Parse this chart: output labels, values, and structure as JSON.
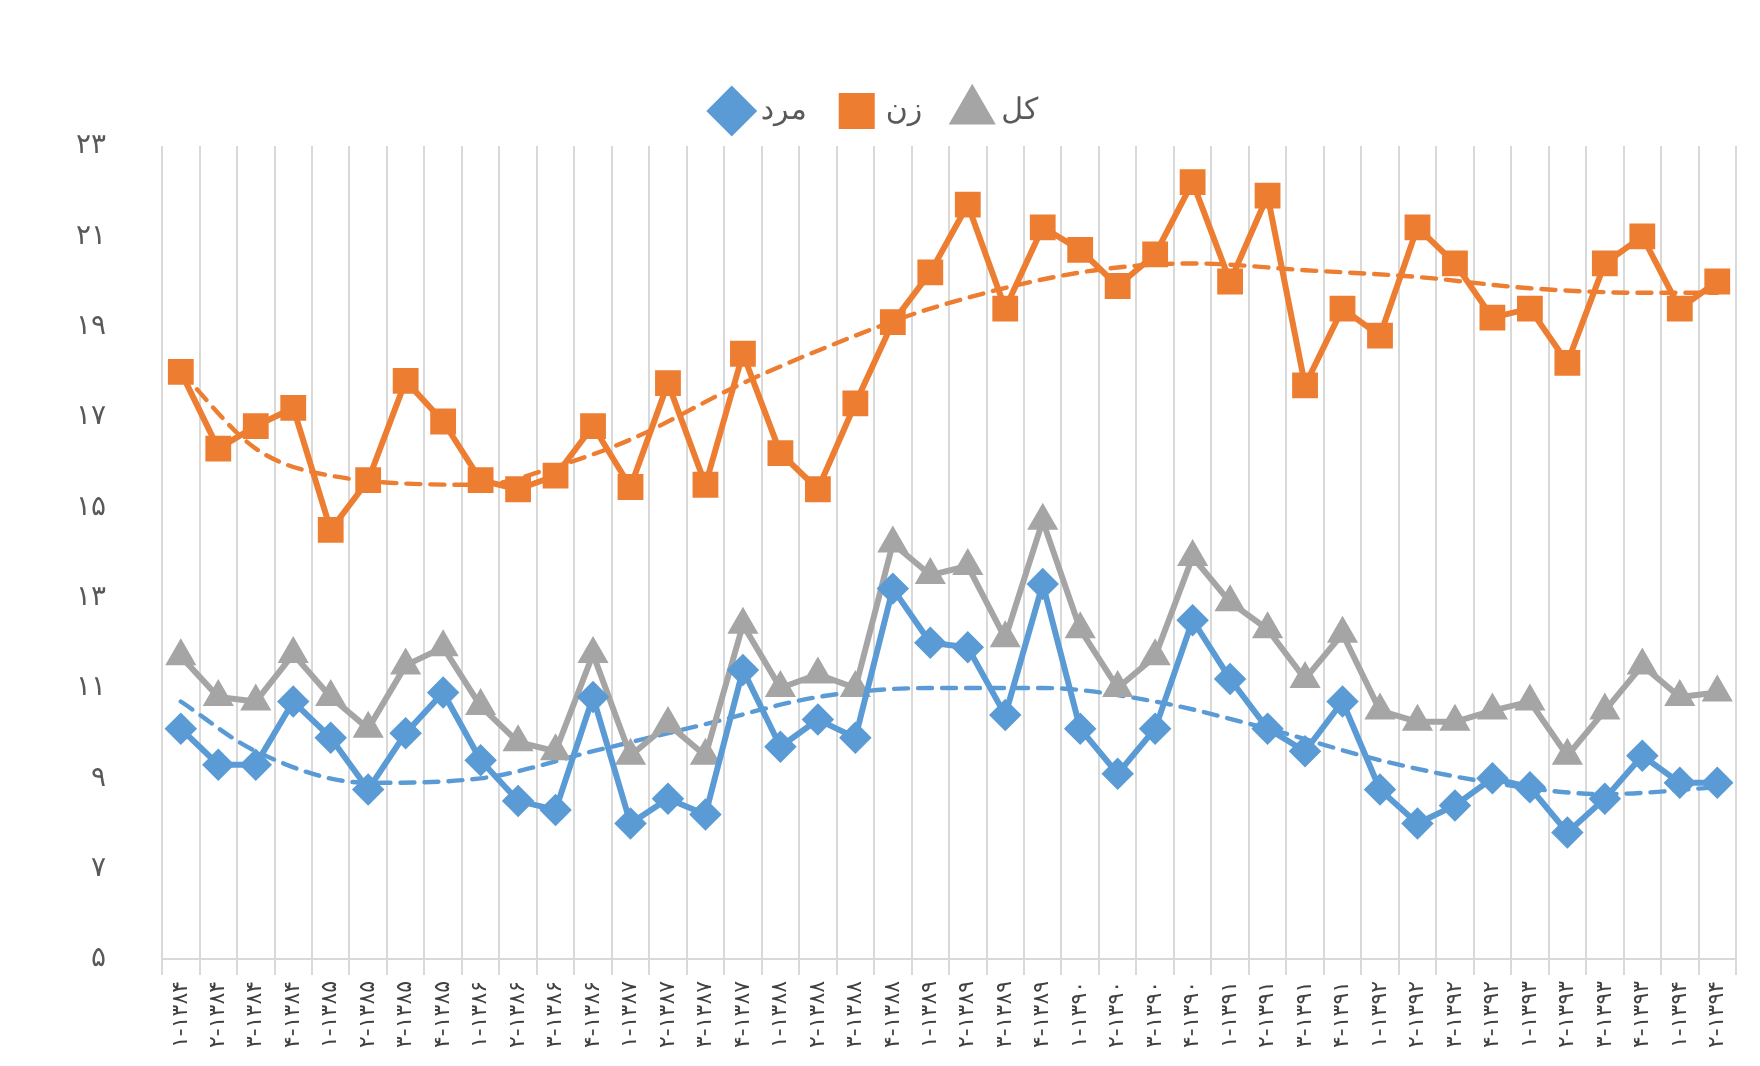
{
  "chart_data": {
    "type": "line",
    "categories": [
      "۱-۱۳۸۴",
      "۲-۱۳۸۴",
      "۳-۱۳۸۴",
      "۴-۱۳۸۴",
      "۱-۱۳۸۵",
      "۲-۱۳۸۵",
      "۳-۱۳۸۵",
      "۴-۱۳۸۵",
      "۱-۱۳۸۶",
      "۲-۱۳۸۶",
      "۳-۱۳۸۶",
      "۴-۱۳۸۶",
      "۱-۱۳۸۷",
      "۲-۱۳۸۷",
      "۳-۱۳۸۷",
      "۴-۱۳۸۷",
      "۱-۱۳۸۸",
      "۲-۱۳۸۸",
      "۳-۱۳۸۸",
      "۴-۱۳۸۸",
      "۱-۱۳۸۹",
      "۲-۱۳۸۹",
      "۳-۱۳۸۹",
      "۴-۱۳۸۹",
      "۱-۱۳۹۰",
      "۲-۱۳۹۰",
      "۳-۱۳۹۰",
      "۴-۱۳۹۰",
      "۱-۱۳۹۱",
      "۲-۱۳۹۱",
      "۳-۱۳۹۱",
      "۴-۱۳۹۱",
      "۱-۱۳۹۲",
      "۲-۱۳۹۲",
      "۳-۱۳۹۲",
      "۴-۱۳۹۲",
      "۱-۱۳۹۳",
      "۲-۱۳۹۳",
      "۳-۱۳۹۳",
      "۴-۱۳۹۳",
      "۱-۱۳۹۴",
      "۲-۱۳۹۴"
    ],
    "series": [
      {
        "name": "مرد",
        "color": "#5b9bd5",
        "marker": "diamond",
        "values": [
          10.1,
          9.3,
          9.3,
          10.7,
          9.9,
          8.75,
          10.0,
          10.9,
          9.4,
          8.5,
          8.3,
          10.8,
          8.0,
          8.55,
          8.2,
          11.4,
          9.7,
          10.3,
          9.9,
          13.2,
          12.0,
          11.9,
          10.4,
          13.3,
          10.1,
          9.1,
          10.1,
          12.5,
          11.2,
          10.1,
          9.6,
          10.7,
          8.75,
          8.0,
          8.4,
          9.0,
          8.8,
          7.8,
          8.55,
          9.5,
          8.9,
          8.9
        ]
      },
      {
        "name": "زن",
        "color": "#ed7d31",
        "marker": "square",
        "values": [
          18.0,
          16.3,
          16.8,
          17.2,
          14.5,
          15.6,
          17.8,
          16.9,
          15.6,
          15.4,
          15.7,
          16.8,
          15.45,
          17.75,
          15.5,
          18.4,
          16.2,
          15.4,
          17.3,
          19.1,
          20.2,
          21.7,
          19.4,
          21.2,
          20.7,
          19.9,
          20.6,
          22.2,
          20.0,
          21.9,
          17.7,
          19.4,
          18.8,
          21.2,
          20.4,
          19.2,
          19.4,
          18.2,
          20.4,
          21.0,
          19.4,
          20.0
        ]
      },
      {
        "name": "کل",
        "color": "#a5a5a5",
        "marker": "triangle",
        "values": [
          11.7,
          10.8,
          10.7,
          11.75,
          10.8,
          10.1,
          11.5,
          11.9,
          10.6,
          9.8,
          9.6,
          11.75,
          9.5,
          10.2,
          9.5,
          12.4,
          11.0,
          11.3,
          11.0,
          14.2,
          13.5,
          13.7,
          12.1,
          14.7,
          12.3,
          11.0,
          11.7,
          13.9,
          12.9,
          12.3,
          11.2,
          12.2,
          10.5,
          10.25,
          10.25,
          10.5,
          10.7,
          9.5,
          10.5,
          11.5,
          10.8,
          10.9
        ]
      },
      {
        "type": "line",
        "color": "#5b9bd5",
        "marker": "none",
        "line_style": "dashed",
        "values": [
          10.7,
          null,
          9.6,
          null,
          null,
          8.9,
          null,
          null,
          9.0,
          null,
          null,
          9.6,
          null,
          null,
          10.2,
          null,
          null,
          10.8,
          null,
          null,
          11.0,
          null,
          null,
          11.0,
          null,
          null,
          10.7,
          null,
          null,
          10.1,
          null,
          null,
          9.4,
          null,
          null,
          8.9,
          null,
          null,
          8.65,
          null,
          null,
          8.8
        ]
      },
      {
        "type": "line",
        "color": "#ed7d31",
        "marker": "none",
        "line_style": "dashed",
        "values": [
          18.0,
          null,
          16.3,
          null,
          15.7,
          null,
          null,
          null,
          15.5,
          null,
          15.9,
          null,
          16.5,
          null,
          null,
          17.75,
          null,
          null,
          18.8,
          null,
          19.4,
          null,
          null,
          null,
          20.2,
          null,
          null,
          20.4,
          null,
          null,
          20.25,
          null,
          null,
          20.1,
          null,
          null,
          19.85,
          null,
          null,
          19.75,
          null,
          19.75
        ]
      }
    ],
    "ylim": [
      5,
      23
    ],
    "yticks": [
      {
        "value": 5,
        "label": "۵"
      },
      {
        "value": 7,
        "label": "۷"
      },
      {
        "value": 9,
        "label": "۹"
      },
      {
        "value": 11,
        "label": "۱۱"
      },
      {
        "value": 13,
        "label": "۱۳"
      },
      {
        "value": 15,
        "label": "۱۵"
      },
      {
        "value": 17,
        "label": "۱۷"
      },
      {
        "value": 19,
        "label": "۱۹"
      },
      {
        "value": 21,
        "label": "۲۱"
      },
      {
        "value": 23,
        "label": "۲۳"
      }
    ],
    "grid": "x",
    "legend": "top"
  }
}
